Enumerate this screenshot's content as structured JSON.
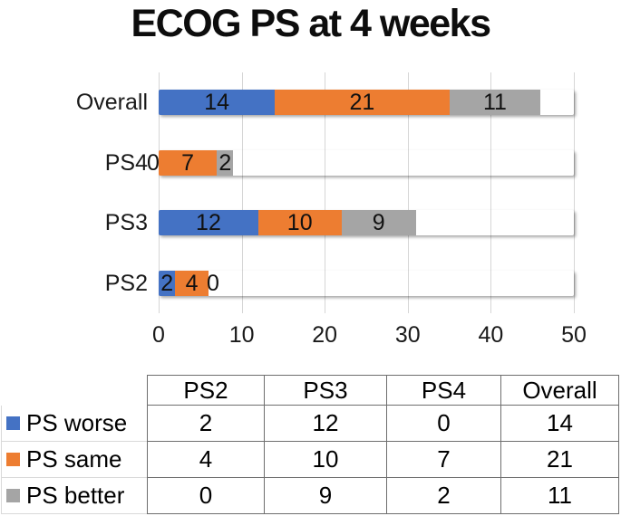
{
  "title": "ECOG PS at 4 weeks",
  "chart_data": {
    "type": "bar",
    "orientation": "horizontal",
    "stacked": true,
    "title": "ECOG PS at 4 weeks",
    "categories": [
      "Overall",
      "PS4",
      "PS3",
      "PS2"
    ],
    "series": [
      {
        "name": "PS worse",
        "color": "#4472C4",
        "values": [
          14,
          0,
          12,
          2
        ]
      },
      {
        "name": "PS same",
        "color": "#ED7D31",
        "values": [
          21,
          7,
          10,
          4
        ]
      },
      {
        "name": "PS better",
        "color": "#A5A5A5",
        "values": [
          11,
          2,
          9,
          0
        ]
      }
    ],
    "xlabel": "",
    "ylabel": "",
    "xlim": [
      0,
      50
    ],
    "xticks": [
      "0",
      "10",
      "20",
      "30",
      "40",
      "50"
    ],
    "grid": "vertical",
    "gridline_color": "#d6d6d6",
    "legend_position": "table-below"
  },
  "table": {
    "columns": [
      "PS2",
      "PS3",
      "PS4",
      "Overall"
    ],
    "rows": [
      {
        "label": "PS worse",
        "swatch_color": "#4472C4",
        "values": [
          "2",
          "12",
          "0",
          "14"
        ]
      },
      {
        "label": "PS same",
        "swatch_color": "#ED7D31",
        "values": [
          "4",
          "10",
          "7",
          "21"
        ]
      },
      {
        "label": "PS better",
        "swatch_color": "#A5A5A5",
        "values": [
          "0",
          "9",
          "2",
          "11"
        ]
      }
    ]
  }
}
